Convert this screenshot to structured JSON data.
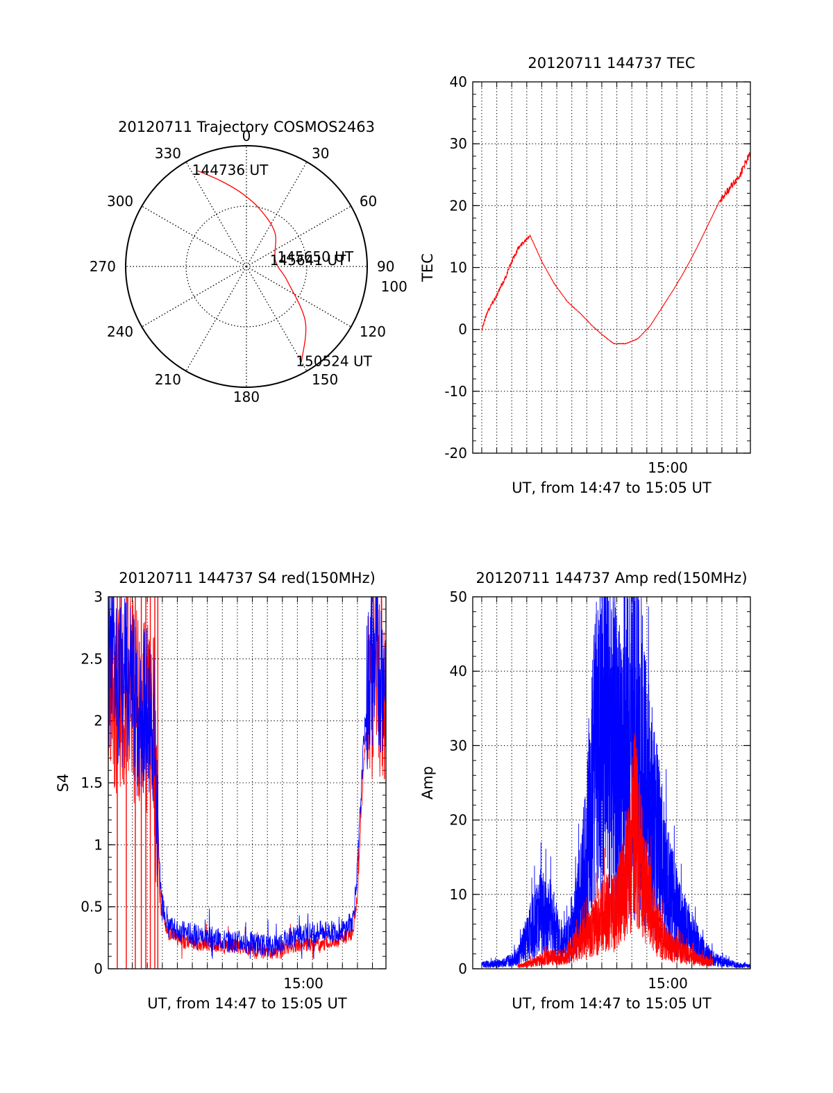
{
  "chart_data": [
    {
      "type": "polar",
      "title": "20120711 Trajectory COSMOS2463",
      "angle_labels": [
        "0",
        "30",
        "60",
        "90",
        "120",
        "150",
        "180",
        "210",
        "240",
        "270",
        "300",
        "330"
      ],
      "angle_values": [
        0,
        30,
        60,
        90,
        120,
        150,
        180,
        210,
        240,
        270,
        300,
        330
      ],
      "extra_label": "100",
      "extra_label_angle": 105,
      "rmax": 90,
      "rings": [
        45,
        90
      ],
      "colors": {
        "track": "#ff0000",
        "grid": "#000000"
      },
      "trajectory": {
        "azimuth": [
          333,
          343,
          356,
          13,
          40,
          79,
          109,
          133,
          150
        ],
        "zenith": [
          80,
          67,
          55,
          44,
          33,
          22,
          32,
          60,
          82
        ]
      },
      "annotations": [
        {
          "text": "144736 UT",
          "azimuth": 333,
          "zenith": 80
        },
        {
          "text": "145641 UT",
          "azimuth": 79,
          "zenith": 22
        },
        {
          "text": "145650 UT",
          "azimuth": 76,
          "zenith": 28
        },
        {
          "text": "150524 UT",
          "azimuth": 150,
          "zenith": 82
        }
      ]
    },
    {
      "type": "line",
      "title": "20120711 144737 TEC",
      "xlabel": "UT, from 14:47 to 15:05 UT",
      "ylabel": "TEC",
      "xlim": [
        887,
        905.5
      ],
      "ylim": [
        -20,
        40
      ],
      "yticks": [
        -20,
        -10,
        0,
        10,
        20,
        30,
        40
      ],
      "yminor_step": 2,
      "xticks": [
        {
          "x": 900,
          "label": "15:00"
        }
      ],
      "xgrid": [
        887.6,
        888.6,
        889.6,
        890.6,
        891.6,
        892.6,
        893.6,
        894.6,
        895.6,
        896.6,
        897.6,
        898.6,
        899.6,
        900.6,
        901.6,
        902.6,
        903.6,
        904.6
      ],
      "grid": true,
      "series": [
        {
          "color": "#ff0000",
          "noise": [
            0,
            3.4,
            0.35,
            0.6
          ],
          "x": [
            887.6,
            888.0,
            888.6,
            889.2,
            889.6,
            890.0,
            890.8,
            891.6,
            892.4,
            893.3,
            894.2,
            895.0,
            895.7,
            896.4,
            897.2,
            898.0,
            898.8,
            899.6,
            900.4,
            901.2,
            902.0,
            902.8,
            903.5,
            904.2,
            904.8,
            905.5
          ],
          "y": [
            0,
            3,
            5.5,
            8.5,
            11,
            13,
            15.3,
            11,
            7.5,
            4.5,
            2.5,
            0.5,
            -1,
            -2.3,
            -2.3,
            -1.5,
            0.5,
            3.5,
            6.5,
            9.8,
            13.5,
            17.5,
            21,
            23,
            25,
            28.5
          ]
        }
      ]
    },
    {
      "type": "line",
      "title": "20120711 144737 S4 red(150MHz)",
      "xlabel": "UT, from 14:47 to 15:05 UT",
      "ylabel": "S4",
      "xlim": [
        887,
        905.5
      ],
      "ylim": [
        0,
        3
      ],
      "yticks": [
        0,
        0.5,
        1,
        1.5,
        2,
        2.5,
        3
      ],
      "ytick_labels": [
        "0",
        "0.5",
        "1",
        "1.5",
        "2",
        "2.5",
        "3"
      ],
      "yminor_step": 0.1,
      "xticks": [
        {
          "x": 900,
          "label": "15:00"
        }
      ],
      "xgrid": [
        887.6,
        888.6,
        889.6,
        890.6,
        891.6,
        892.6,
        893.6,
        894.6,
        895.6,
        896.6,
        897.6,
        898.6,
        899.6,
        900.6,
        901.6,
        902.6,
        903.6,
        904.6
      ],
      "grid": true,
      "series": [
        {
          "color": "#ff0000",
          "noise": [
            0,
            3.6,
            0.7,
            0.06,
            3.7,
            5.0,
            0.5
          ],
          "x": [
            887.0,
            888.0,
            889.0,
            890.0,
            890.5,
            891.0,
            892.0,
            893.0,
            894.0,
            895.0,
            896.0,
            897.0,
            898.0,
            899.0,
            900.0,
            901.0,
            902.0,
            902.8,
            903.3,
            903.6,
            904.0,
            904.4,
            904.8,
            905.5
          ],
          "y": [
            2.2,
            2.3,
            2.1,
            2.0,
            0.5,
            0.28,
            0.22,
            0.2,
            0.2,
            0.18,
            0.17,
            0.15,
            0.13,
            0.18,
            0.2,
            0.2,
            0.22,
            0.25,
            0.3,
            0.6,
            1.6,
            2.3,
            2.4,
            2.2
          ],
          "spikes": [
            887.6,
            888.2,
            888.8,
            889.2,
            889.5,
            889.8,
            890.1,
            890.3
          ]
        },
        {
          "color": "#0000ff",
          "noise": [
            0,
            3.6,
            0.6,
            0.09,
            3.7,
            5.0,
            0.45
          ],
          "x": [
            887.0,
            888.0,
            889.0,
            890.0,
            890.5,
            891.0,
            892.0,
            893.0,
            894.0,
            895.0,
            896.0,
            897.0,
            898.0,
            899.0,
            900.0,
            901.0,
            902.0,
            902.8,
            903.3,
            903.6,
            904.0,
            904.4,
            904.8,
            905.5
          ],
          "y": [
            2.4,
            2.3,
            2.1,
            2.0,
            0.6,
            0.33,
            0.3,
            0.27,
            0.25,
            0.22,
            0.22,
            0.2,
            0.18,
            0.25,
            0.28,
            0.3,
            0.3,
            0.32,
            0.4,
            0.8,
            1.8,
            2.4,
            2.5,
            2.4
          ]
        }
      ]
    },
    {
      "type": "line",
      "title": "20120711 144737 Amp red(150MHz)",
      "xlabel": "UT, from 14:47 to 15:05 UT",
      "ylabel": "Amp",
      "xlim": [
        887,
        905.5
      ],
      "ylim": [
        0,
        50
      ],
      "yticks": [
        0,
        10,
        20,
        30,
        40,
        50
      ],
      "yminor_step": 2,
      "xticks": [
        {
          "x": 900,
          "label": "15:00"
        }
      ],
      "xgrid": [
        887.6,
        888.6,
        889.6,
        890.6,
        891.6,
        892.6,
        893.6,
        894.6,
        895.6,
        896.6,
        897.6,
        898.6,
        899.6,
        900.6,
        901.6,
        902.6,
        903.6,
        904.6
      ],
      "grid": true,
      "series": [
        {
          "color": "#0000ff",
          "noise": [
            0,
            200,
            0.4
          ],
          "x": [
            887.6,
            889.0,
            890.0,
            890.8,
            891.5,
            892.3,
            893.0,
            893.6,
            894.3,
            895.0,
            895.6,
            896.2,
            896.9,
            897.5,
            898.1,
            898.7,
            899.3,
            900.0,
            900.8,
            901.6,
            902.4,
            903.3,
            904.5,
            905.5
          ],
          "y": [
            0.5,
            0.7,
            1.5,
            4.5,
            7,
            6,
            3,
            4,
            10,
            22,
            31,
            26,
            24,
            30,
            28,
            20,
            16,
            10,
            6,
            4,
            2,
            1,
            0.5,
            0.3
          ]
        },
        {
          "color": "#ff0000",
          "noise": [
            0,
            200,
            0.35
          ],
          "x": [
            890.0,
            891.0,
            892.0,
            893.0,
            894.0,
            895.0,
            895.8,
            896.5,
            897.2,
            897.8,
            898.5,
            899.3,
            900.0,
            901.0,
            902.0,
            903.0
          ],
          "y": [
            0.3,
            0.8,
            1.4,
            1.5,
            3,
            5,
            7,
            7,
            11,
            18,
            10,
            5,
            3,
            2,
            1.2,
            0.8
          ]
        }
      ]
    }
  ]
}
